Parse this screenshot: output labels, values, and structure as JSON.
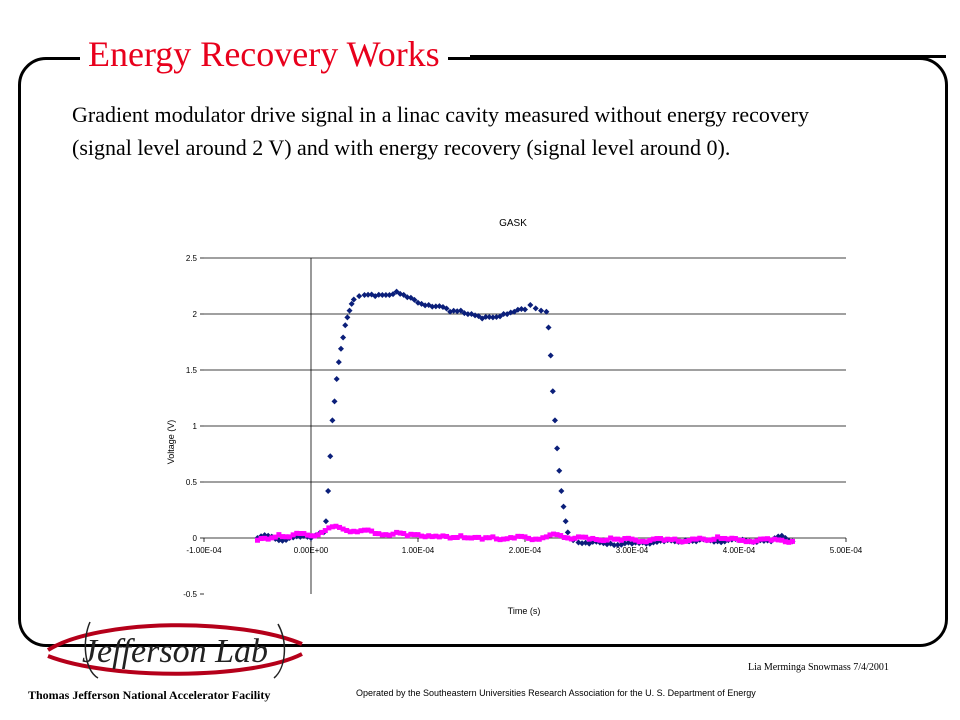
{
  "slide": {
    "title": "Energy Recovery Works",
    "description": "Gradient modulator drive signal in a linac cavity measured without energy recovery (signal level around 2 V) and with energy recovery (signal level around 0).",
    "footer_left": "Thomas Jefferson National Accelerator Facility",
    "footer_right": "Lia Merminga Snowmass 7/4/2001",
    "footer_center": "Operated by the Southeastern Universities Research Association for the U. S. Department of Energy",
    "logo_text": "Jefferson Lab",
    "colors": {
      "title": "#e8001c",
      "logo": "#b5001a",
      "series_a": "#0b1f7a",
      "series_b": "#ff00ff"
    }
  },
  "chart_data": {
    "type": "scatter",
    "title": "GASK",
    "xlabel": "Time (s)",
    "ylabel": "Voltage (V)",
    "xlim": [
      -0.0001,
      0.0005
    ],
    "ylim": [
      -0.5,
      2.5
    ],
    "x_ticks": [
      -0.0001,
      0.0,
      0.0001,
      0.0002,
      0.0003,
      0.0004,
      0.0005
    ],
    "x_tick_labels": [
      "-1.00E-04",
      "0.00E+00",
      "1.00E-04",
      "2.00E-04",
      "3.00E-04",
      "4.00E-04",
      "5.00E-04"
    ],
    "y_ticks": [
      -0.5,
      0,
      0.5,
      1,
      1.5,
      2,
      2.5
    ],
    "y_tick_labels": [
      "-0.5",
      "0",
      "0.5",
      "1",
      "1.5",
      "2",
      "2.5"
    ],
    "grid": "horizontal",
    "legend": "none",
    "series": [
      {
        "color": "#0b1f7a",
        "marker": "diamond",
        "points": [
          [
            -5e-05,
            0.0
          ],
          [
            -4e-05,
            0.02
          ],
          [
            -3e-05,
            -0.02
          ],
          [
            -2e-05,
            0.0
          ],
          [
            -1e-05,
            0.01
          ],
          [
            0.0,
            0.0
          ],
          [
            1.2e-05,
            0.05
          ],
          [
            1.4e-05,
            0.15
          ],
          [
            1.6e-05,
            0.42
          ],
          [
            1.8e-05,
            0.73
          ],
          [
            2e-05,
            1.05
          ],
          [
            2.2e-05,
            1.22
          ],
          [
            2.4e-05,
            1.42
          ],
          [
            2.6e-05,
            1.57
          ],
          [
            2.8e-05,
            1.69
          ],
          [
            3e-05,
            1.79
          ],
          [
            3.2e-05,
            1.9
          ],
          [
            3.4e-05,
            1.97
          ],
          [
            3.6e-05,
            2.03
          ],
          [
            3.8e-05,
            2.09
          ],
          [
            4e-05,
            2.13
          ],
          [
            4.5e-05,
            2.16
          ],
          [
            5e-05,
            2.17
          ],
          [
            6e-05,
            2.16
          ],
          [
            7e-05,
            2.17
          ],
          [
            8e-05,
            2.2
          ],
          [
            9e-05,
            2.15
          ],
          [
            0.0001,
            2.1
          ],
          [
            0.00011,
            2.08
          ],
          [
            0.00012,
            2.07
          ],
          [
            0.00013,
            2.02
          ],
          [
            0.00014,
            2.03
          ],
          [
            0.00015,
            2.0
          ],
          [
            0.00016,
            1.96
          ],
          [
            0.00017,
            1.97
          ],
          [
            0.00018,
            2.0
          ],
          [
            0.00019,
            2.02
          ],
          [
            0.0002,
            2.04
          ],
          [
            0.000205,
            2.08
          ],
          [
            0.00021,
            2.05
          ],
          [
            0.000215,
            2.03
          ],
          [
            0.00022,
            2.02
          ],
          [
            0.000222,
            1.88
          ],
          [
            0.000224,
            1.63
          ],
          [
            0.000226,
            1.31
          ],
          [
            0.000228,
            1.05
          ],
          [
            0.00023,
            0.8
          ],
          [
            0.000232,
            0.6
          ],
          [
            0.000234,
            0.42
          ],
          [
            0.000236,
            0.28
          ],
          [
            0.000238,
            0.15
          ],
          [
            0.00024,
            0.05
          ],
          [
            0.000245,
            -0.02
          ],
          [
            0.00025,
            -0.04
          ],
          [
            0.00026,
            -0.05
          ],
          [
            0.00027,
            -0.04
          ],
          [
            0.00028,
            -0.05
          ],
          [
            0.00029,
            -0.06
          ],
          [
            0.0003,
            -0.05
          ],
          [
            0.00031,
            -0.04
          ],
          [
            0.00032,
            -0.04
          ],
          [
            0.00033,
            -0.03
          ],
          [
            0.00034,
            -0.03
          ],
          [
            0.00035,
            -0.02
          ],
          [
            0.00036,
            -0.03
          ],
          [
            0.00037,
            -0.02
          ],
          [
            0.00038,
            -0.03
          ],
          [
            0.00039,
            -0.02
          ],
          [
            0.0004,
            -0.02
          ],
          [
            0.00041,
            -0.03
          ],
          [
            0.00042,
            -0.02
          ],
          [
            0.00043,
            -0.03
          ],
          [
            0.00044,
            0.02
          ],
          [
            0.00045,
            -0.03
          ]
        ]
      },
      {
        "color": "#ff00ff",
        "marker": "square",
        "points": [
          [
            -5e-05,
            -0.02
          ],
          [
            -4e-05,
            -0.01
          ],
          [
            -3e-05,
            0.03
          ],
          [
            -2e-05,
            0.01
          ],
          [
            -1e-05,
            0.04
          ],
          [
            0.0,
            0.02
          ],
          [
            1e-05,
            0.05
          ],
          [
            2e-05,
            0.1
          ],
          [
            3e-05,
            0.08
          ],
          [
            4e-05,
            0.06
          ],
          [
            5e-05,
            0.07
          ],
          [
            6e-05,
            0.04
          ],
          [
            7e-05,
            0.03
          ],
          [
            8e-05,
            0.05
          ],
          [
            9e-05,
            0.02
          ],
          [
            0.0001,
            0.03
          ],
          [
            0.00011,
            0.02
          ],
          [
            0.00012,
            0.01
          ],
          [
            0.00013,
            0.0
          ],
          [
            0.00014,
            0.02
          ],
          [
            0.00015,
            0.0
          ],
          [
            0.00016,
            -0.01
          ],
          [
            0.00017,
            0.01
          ],
          [
            0.00018,
            -0.01
          ],
          [
            0.00019,
            0.0
          ],
          [
            0.0002,
            0.01
          ],
          [
            0.00021,
            -0.01
          ],
          [
            0.00022,
            0.01
          ],
          [
            0.00023,
            0.03
          ],
          [
            0.00024,
            0.0
          ],
          [
            0.00025,
            0.01
          ],
          [
            0.00026,
            -0.01
          ],
          [
            0.00027,
            -0.02
          ],
          [
            0.00028,
            0.0
          ],
          [
            0.00029,
            -0.02
          ],
          [
            0.0003,
            -0.01
          ],
          [
            0.00031,
            -0.03
          ],
          [
            0.00032,
            -0.01
          ],
          [
            0.00033,
            -0.02
          ],
          [
            0.00034,
            -0.01
          ],
          [
            0.00035,
            -0.03
          ],
          [
            0.00036,
            -0.01
          ],
          [
            0.00037,
            -0.02
          ],
          [
            0.00038,
            0.01
          ],
          [
            0.00039,
            -0.01
          ],
          [
            0.0004,
            -0.02
          ],
          [
            0.00041,
            -0.03
          ],
          [
            0.00042,
            -0.01
          ],
          [
            0.00043,
            -0.02
          ],
          [
            0.00044,
            -0.02
          ],
          [
            0.00045,
            -0.03
          ]
        ]
      }
    ]
  }
}
